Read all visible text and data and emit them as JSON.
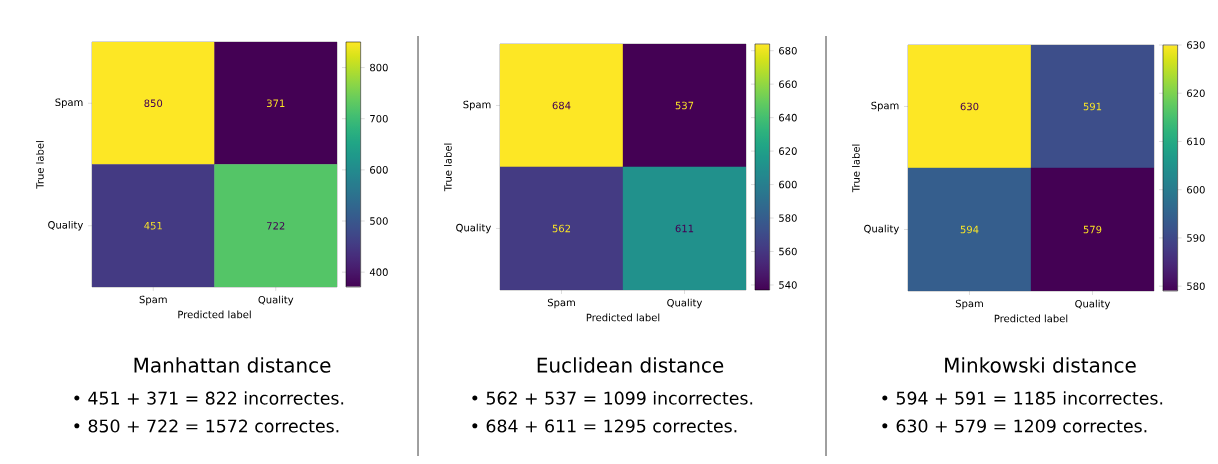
{
  "chart_data": [
    {
      "type": "heatmap",
      "title": "Manhattan distance",
      "xlabel": "Predicted label",
      "ylabel": "True label",
      "categories": [
        "Spam",
        "Quality"
      ],
      "y_categories": [
        "Spam",
        "Quality"
      ],
      "cells": [
        [
          850,
          371
        ],
        [
          451,
          722
        ]
      ],
      "clim": [
        371,
        850
      ],
      "cticks": [
        400,
        500,
        600,
        700,
        800
      ],
      "data_labels": true,
      "annotations": [
        "•  451 + 371 = 822 incorrectes.",
        "•  850 + 722 = 1572 correctes."
      ]
    },
    {
      "type": "heatmap",
      "title": "Euclidean distance",
      "xlabel": "Predicted label",
      "ylabel": "True label",
      "categories": [
        "Spam",
        "Quality"
      ],
      "y_categories": [
        "Spam",
        "Quality"
      ],
      "cells": [
        [
          684,
          537
        ],
        [
          562,
          611
        ]
      ],
      "clim": [
        537,
        684
      ],
      "cticks": [
        540,
        560,
        580,
        600,
        620,
        640,
        660,
        680
      ],
      "data_labels": true,
      "annotations": [
        "•  562 + 537 = 1099 incorrectes.",
        "•  684 + 611 = 1295 correctes."
      ]
    },
    {
      "type": "heatmap",
      "title": "Minkowski distance",
      "xlabel": "Predicted label",
      "ylabel": "True label",
      "categories": [
        "Spam",
        "Quality"
      ],
      "y_categories": [
        "Spam",
        "Quality"
      ],
      "cells": [
        [
          630,
          591
        ],
        [
          594,
          579
        ]
      ],
      "clim": [
        579,
        630
      ],
      "cticks": [
        580,
        590,
        600,
        610,
        620,
        630
      ],
      "data_labels": true,
      "annotations": [
        "•  594 + 591 = 1185 incorrectes.",
        "•  630 + 579 = 1209 correctes."
      ]
    }
  ]
}
